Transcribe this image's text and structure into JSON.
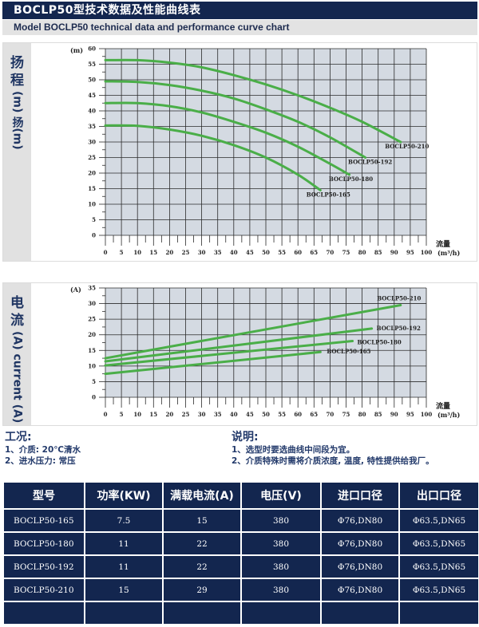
{
  "header": {
    "title": "BOCLP50型技术数据及性能曲线表",
    "subtitle": "Model BOCLP50 technical data and performance curve chart"
  },
  "head_chart": {
    "side_label_cn_1": "扬",
    "side_label_cn_2": "程",
    "side_label_unit": "(m) 扬(m)",
    "y_unit": "(m)",
    "x_label": "流量",
    "x_unit": "(m³/h)"
  },
  "current_chart": {
    "side_label_cn_1": "电",
    "side_label_cn_2": "流",
    "side_label_unit": "(A) current (A)",
    "y_unit": "(A)",
    "x_label": "流量",
    "x_unit": "(m³/h)"
  },
  "conditions": {
    "title": "工况:",
    "items": [
      "1、介质: 20℃清水",
      "2、进水压力: 常压"
    ]
  },
  "notes": {
    "title": "说明:",
    "items": [
      "1、选型时要选曲线中间段为宜。",
      "2、介质特殊时需将介质浓度, 温度, 特性提供给我厂。"
    ]
  },
  "table": {
    "headers": [
      "型号",
      "功率(KW)",
      "满载电流(A)",
      "电压(V)",
      "进口口径",
      "出口口径"
    ],
    "rows": [
      [
        "BOCLP50-165",
        "7.5",
        "15",
        "380",
        "Φ76,DN80",
        "Φ63.5,DN65"
      ],
      [
        "BOCLP50-180",
        "11",
        "22",
        "380",
        "Φ76,DN80",
        "Φ63.5,DN65"
      ],
      [
        "BOCLP50-192",
        "11",
        "22",
        "380",
        "Φ76,DN80",
        "Φ63.5,DN65"
      ],
      [
        "BOCLP50-210",
        "15",
        "29",
        "380",
        "Φ76,DN80",
        "Φ63.5,DN65"
      ],
      [
        "",
        "",
        "",
        "",
        "",
        ""
      ]
    ]
  },
  "colors": {
    "brand_navy": "#13264f",
    "plot_bg": "#d4dae2",
    "grid": "#2b2b2b",
    "curve": "#4aae48",
    "side_panel": "#e1e1e1"
  },
  "chart_data": [
    {
      "type": "line",
      "title": "Head vs Flow (扬程)",
      "xlabel": "流量 (m³/h)",
      "ylabel": "扬程 (m)",
      "xlim": [
        0,
        100
      ],
      "ylim": [
        0,
        60
      ],
      "x_ticks": [
        0,
        5,
        10,
        15,
        20,
        25,
        30,
        35,
        40,
        45,
        50,
        55,
        60,
        65,
        70,
        75,
        80,
        85,
        90,
        95,
        100
      ],
      "y_ticks": [
        0,
        5,
        10,
        15,
        20,
        25,
        30,
        35,
        40,
        45,
        50,
        55,
        60
      ],
      "grid": true,
      "series": [
        {
          "name": "BOCLP50-210",
          "x": [
            0,
            10,
            20,
            30,
            40,
            50,
            60,
            70,
            80,
            92
          ],
          "y": [
            56.3,
            56.3,
            55.5,
            54.0,
            51.5,
            48.5,
            45.0,
            41.0,
            36.5,
            30.0
          ]
        },
        {
          "name": "BOCLP50-192",
          "x": [
            0,
            10,
            20,
            30,
            40,
            50,
            60,
            70,
            81
          ],
          "y": [
            49.5,
            49.3,
            48.3,
            46.5,
            44.0,
            40.5,
            36.5,
            31.5,
            25.0
          ]
        },
        {
          "name": "BOCLP50-180",
          "x": [
            0,
            10,
            20,
            30,
            40,
            50,
            60,
            70,
            76
          ],
          "y": [
            42.5,
            42.5,
            41.5,
            39.5,
            36.5,
            33.0,
            28.5,
            23.0,
            19.5
          ]
        },
        {
          "name": "BOCLP50-165",
          "x": [
            0,
            10,
            20,
            30,
            40,
            50,
            60,
            67
          ],
          "y": [
            35.3,
            35.2,
            34.0,
            32.0,
            29.0,
            25.0,
            19.5,
            14.5
          ]
        }
      ]
    },
    {
      "type": "line",
      "title": "Current vs Flow (电流)",
      "xlabel": "流量 (m³/h)",
      "ylabel": "电流 (A) current (A)",
      "xlim": [
        0,
        100
      ],
      "ylim": [
        0,
        35
      ],
      "x_ticks": [
        0,
        5,
        10,
        15,
        20,
        25,
        30,
        35,
        40,
        45,
        50,
        55,
        60,
        65,
        70,
        75,
        80,
        85,
        90,
        95,
        100
      ],
      "y_ticks": [
        0,
        5,
        10,
        15,
        20,
        25,
        30,
        35
      ],
      "grid": true,
      "series": [
        {
          "name": "BOCLP50-210",
          "x": [
            0,
            92
          ],
          "y": [
            12.5,
            29.5
          ]
        },
        {
          "name": "BOCLP50-192",
          "x": [
            0,
            83
          ],
          "y": [
            11.5,
            22.0
          ]
        },
        {
          "name": "BOCLP50-180",
          "x": [
            0,
            77
          ],
          "y": [
            10.2,
            18.0
          ]
        },
        {
          "name": "BOCLP50-165",
          "x": [
            0,
            67
          ],
          "y": [
            7.5,
            14.5
          ]
        }
      ]
    }
  ]
}
